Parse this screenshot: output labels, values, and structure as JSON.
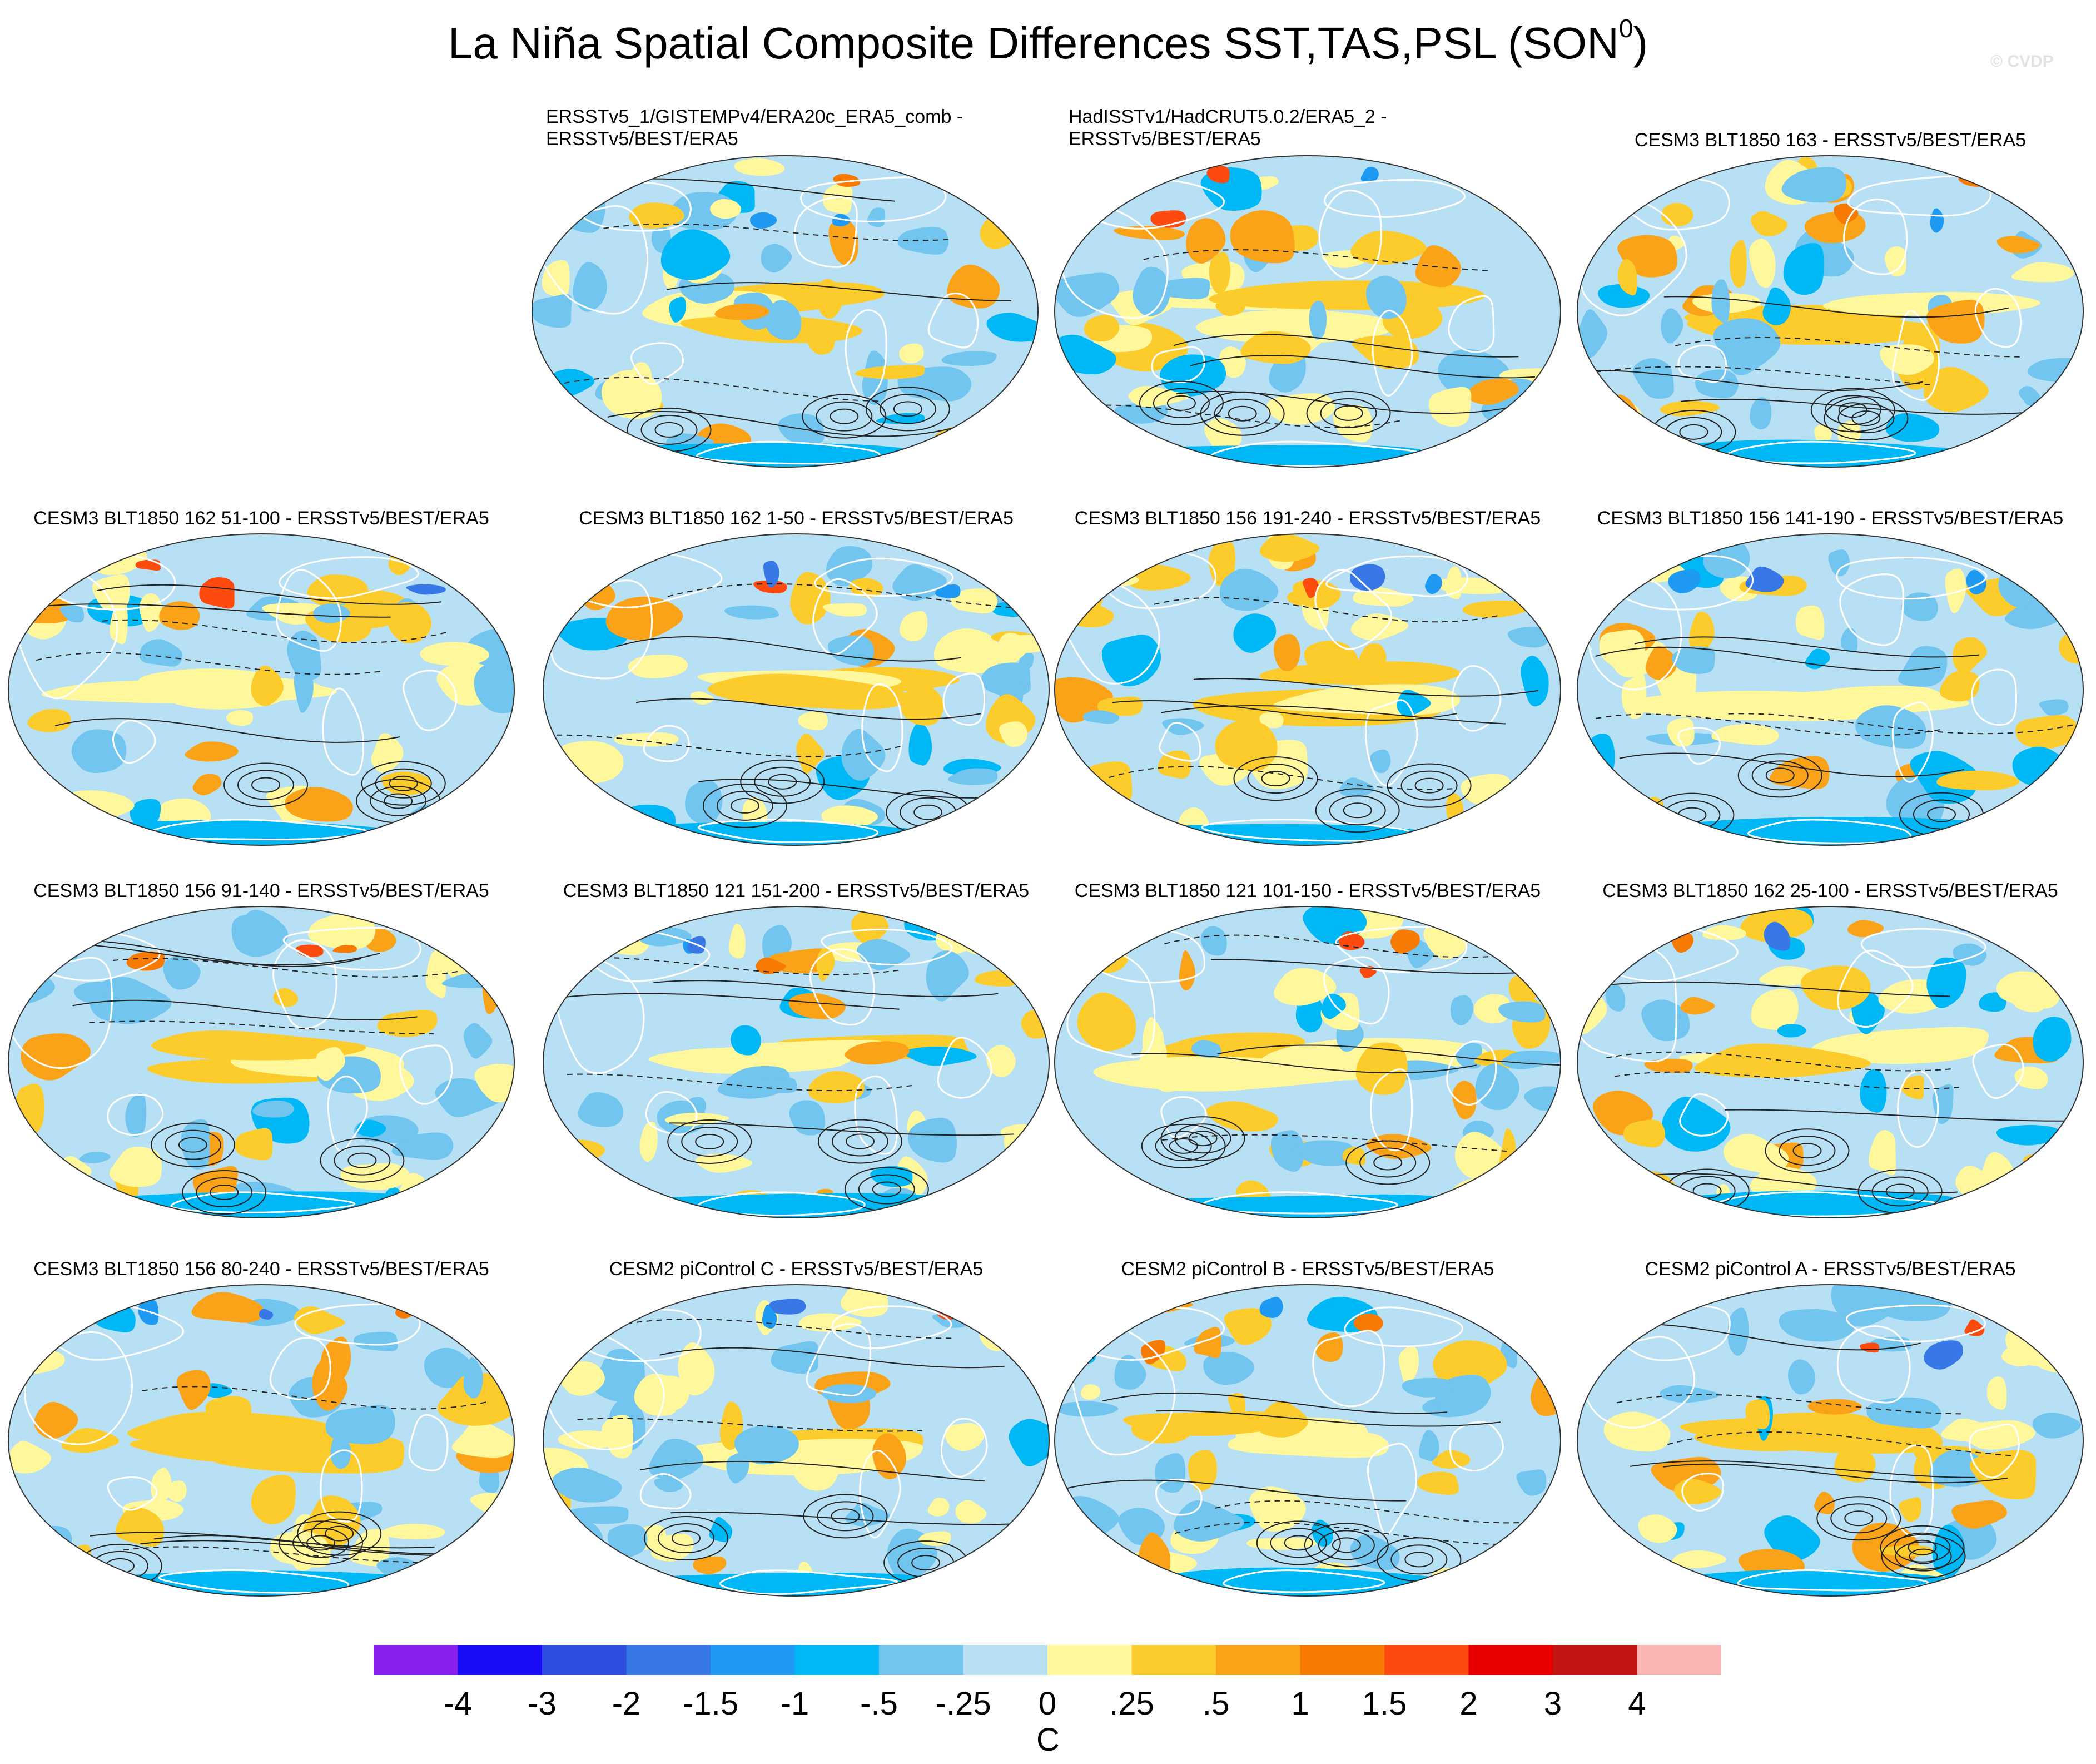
{
  "title": {
    "main": "La Niña Spatial Composite Differences SST,TAS,PSL (SON",
    "superscript": "0",
    "close": ")"
  },
  "watermark": "© CVDP",
  "panels": [
    {
      "title": "ERSSTv5_1/GISTEMPv4/ERA20c_ERA5_comb -\nERSSTv5/BEST/ERA5",
      "two_line": true,
      "variant": 0
    },
    {
      "title": "HadISSTv1/HadCRUT5.0.2/ERA5_2 -\nERSSTv5/BEST/ERA5",
      "two_line": true,
      "variant": 1
    },
    {
      "title": "CESM3 BLT1850 163 - ERSSTv5/BEST/ERA5",
      "two_line": false,
      "variant": 2
    },
    {
      "title": "CESM3 BLT1850 162 51-100 - ERSSTv5/BEST/ERA5",
      "two_line": false,
      "variant": 3
    },
    {
      "title": "CESM3 BLT1850 162 1-50 - ERSSTv5/BEST/ERA5",
      "two_line": false,
      "variant": 4
    },
    {
      "title": "CESM3 BLT1850 156 191-240 - ERSSTv5/BEST/ERA5",
      "two_line": false,
      "variant": 5
    },
    {
      "title": "CESM3 BLT1850 156 141-190 - ERSSTv5/BEST/ERA5",
      "two_line": false,
      "variant": 6
    },
    {
      "title": "CESM3 BLT1850 156 91-140 - ERSSTv5/BEST/ERA5",
      "two_line": false,
      "variant": 7
    },
    {
      "title": "CESM3 BLT1850 121 151-200 - ERSSTv5/BEST/ERA5",
      "two_line": false,
      "variant": 8
    },
    {
      "title": "CESM3 BLT1850 121 101-150 - ERSSTv5/BEST/ERA5",
      "two_line": false,
      "variant": 9
    },
    {
      "title": "CESM3 BLT1850 162 25-100 - ERSSTv5/BEST/ERA5",
      "two_line": false,
      "variant": 10
    },
    {
      "title": "CESM3 BLT1850 156 80-240 - ERSSTv5/BEST/ERA5",
      "two_line": false,
      "variant": 11
    },
    {
      "title": "CESM2 piControl C - ERSSTv5/BEST/ERA5",
      "two_line": false,
      "variant": 12
    },
    {
      "title": "CESM2 piControl B - ERSSTv5/BEST/ERA5",
      "two_line": false,
      "variant": 13
    },
    {
      "title": "CESM2 piControl A - ERSSTv5/BEST/ERA5",
      "two_line": false,
      "variant": 14
    }
  ],
  "colorbar": {
    "colors": [
      "#8b1fee",
      "#1a0cf5",
      "#2f4ee0",
      "#3777e6",
      "#1e9af2",
      "#00b8f5",
      "#72c5ee",
      "#b8e0f4",
      "#fff79c",
      "#fccc2d",
      "#fba318",
      "#f77b03",
      "#fd4a0e",
      "#e80000",
      "#c41515",
      "#fbb4b4"
    ],
    "labels": [
      "-4",
      "-3",
      "-2",
      "-1.5",
      "-1",
      "-.5",
      "-.25",
      "0",
      ".25",
      ".5",
      "1",
      "1.5",
      "2",
      "3",
      "4"
    ],
    "unit": "C"
  }
}
